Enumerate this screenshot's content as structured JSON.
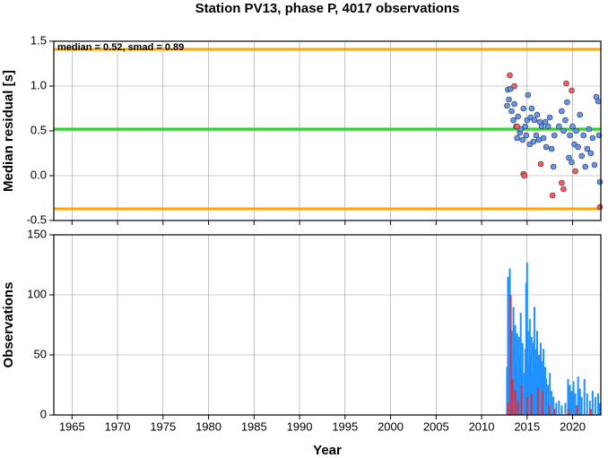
{
  "title": "Station PV13, phase P, 4017 observations",
  "chart_data": [
    {
      "type": "scatter",
      "ylabel": "Median residual [s]",
      "annotation": "median = 0.52, smad = 0.89",
      "xlim": [
        1963,
        2023.1
      ],
      "xticks": [
        1965,
        1970,
        1975,
        1980,
        1985,
        1990,
        1995,
        2000,
        2005,
        2010,
        2015,
        2020
      ],
      "ylim": [
        -0.5,
        1.5
      ],
      "yticks": [
        -0.5,
        {
          "value": 0,
          "label": "0.0"
        },
        0.5,
        {
          "value": 1,
          "label": "1.0"
        },
        1.5
      ],
      "grid": true,
      "reference_lines": [
        {
          "value": 1.41,
          "color": "#ffa500"
        },
        {
          "value": 0.52,
          "color": "#22dd22"
        },
        {
          "value": -0.37,
          "color": "#ffa500"
        }
      ],
      "series": [
        {
          "color": "#6495ed",
          "x": [
            2012.8,
            2012.9,
            2013.0,
            2013.2,
            2013.3,
            2013.5,
            2013.6,
            2013.8,
            2013.9,
            2014.0,
            2014.2,
            2014.3,
            2014.5,
            2014.6,
            2014.8,
            2014.9,
            2015.0,
            2015.1,
            2015.3,
            2015.4,
            2015.5,
            2015.7,
            2015.8,
            2016.0,
            2016.1,
            2016.3,
            2016.4,
            2016.6,
            2016.8,
            2017.0,
            2017.1,
            2017.3,
            2017.5,
            2017.7,
            2017.9,
            2018.0,
            2018.5,
            2018.8,
            2019.0,
            2019.2,
            2019.4,
            2019.6,
            2019.7,
            2019.9,
            2020.0,
            2020.2,
            2020.4,
            2020.6,
            2020.8,
            2021.0,
            2021.2,
            2021.4,
            2021.6,
            2021.8,
            2022.0,
            2022.2,
            2022.4,
            2022.6,
            2022.8,
            2022.9,
            2023.0
          ],
          "values": [
            0.78,
            0.96,
            0.85,
            0.97,
            0.72,
            0.62,
            0.8,
            0.55,
            0.42,
            0.66,
            0.48,
            0.52,
            0.4,
            0.75,
            0.55,
            0.45,
            0.62,
            0.9,
            0.35,
            0.65,
            0.75,
            0.38,
            0.62,
            0.45,
            0.68,
            0.4,
            0.6,
            0.55,
            0.42,
            0.6,
            0.32,
            0.55,
            0.65,
            0.3,
            0.1,
            0.45,
            0.55,
            0.72,
            0.5,
            0.62,
            0.82,
            0.2,
            0.45,
            0.15,
            0.55,
            0.35,
            0.5,
            0.32,
            0.68,
            0.22,
            0.45,
            0.1,
            0.3,
            0.52,
            0.25,
            0.42,
            0.12,
            0.88,
            0.83,
            0.45,
            -0.07
          ]
        },
        {
          "color": "#ff5a5a",
          "x": [
            2013.1,
            2013.6,
            2013.9,
            2014.6,
            2014.7,
            2016.5,
            2017.8,
            2018.8,
            2019.0,
            2019.3,
            2019.9,
            2020.3,
            2023.0
          ],
          "values": [
            1.12,
            1.0,
            0.55,
            0.02,
            0.0,
            0.13,
            -0.22,
            -0.08,
            -0.15,
            1.03,
            0.95,
            0.05,
            -0.35
          ]
        }
      ]
    },
    {
      "type": "bar",
      "ylabel": "Observations",
      "xlabel": "Year",
      "xlim": [
        1963,
        2023.1
      ],
      "xticks": [
        1965,
        1970,
        1975,
        1980,
        1985,
        1990,
        1995,
        2000,
        2005,
        2010,
        2015,
        2020
      ],
      "ylim": [
        0,
        150
      ],
      "yticks": [
        0,
        50,
        100,
        150
      ],
      "grid": true,
      "series": [
        {
          "color": "#1e90ff",
          "x": [
            2012.8,
            2012.9,
            2013.0,
            2013.1,
            2013.2,
            2013.3,
            2013.5,
            2013.6,
            2013.7,
            2013.8,
            2013.9,
            2014.0,
            2014.1,
            2014.2,
            2014.3,
            2014.4,
            2014.5,
            2014.7,
            2014.8,
            2014.9,
            2015.0,
            2015.1,
            2015.2,
            2015.3,
            2015.4,
            2015.5,
            2015.6,
            2015.7,
            2015.8,
            2015.9,
            2016.0,
            2016.1,
            2016.2,
            2016.3,
            2016.5,
            2016.6,
            2016.7,
            2016.8,
            2017.0,
            2017.1,
            2017.3,
            2017.5,
            2017.7,
            2017.9,
            2018.2,
            2018.5,
            2018.8,
            2019.2,
            2019.5,
            2019.7,
            2019.9,
            2020.1,
            2020.3,
            2020.6,
            2020.8,
            2021.0,
            2021.3,
            2021.6,
            2021.9,
            2022.2,
            2022.5,
            2022.8,
            2023.0
          ],
          "values": [
            40,
            115,
            60,
            122,
            85,
            70,
            90,
            55,
            75,
            45,
            68,
            30,
            65,
            50,
            85,
            40,
            60,
            35,
            55,
            110,
            127,
            70,
            45,
            80,
            50,
            65,
            35,
            60,
            90,
            40,
            55,
            70,
            30,
            50,
            60,
            45,
            35,
            55,
            40,
            30,
            25,
            35,
            20,
            15,
            10,
            12,
            8,
            10,
            30,
            25,
            20,
            28,
            18,
            32,
            22,
            15,
            30,
            18,
            12,
            20,
            15,
            18,
            10
          ]
        },
        {
          "color": "#e0303f",
          "x": [
            2012.9,
            2013.2,
            2013.4,
            2013.7,
            2014.0,
            2014.4,
            2015.0,
            2015.5,
            2016.2,
            2016.7,
            2017.4,
            2018.0,
            2019.5,
            2020.5,
            2022.0
          ],
          "values": [
            10,
            100,
            30,
            20,
            12,
            25,
            15,
            18,
            22,
            20,
            8,
            5,
            5,
            8,
            5
          ]
        }
      ]
    }
  ]
}
